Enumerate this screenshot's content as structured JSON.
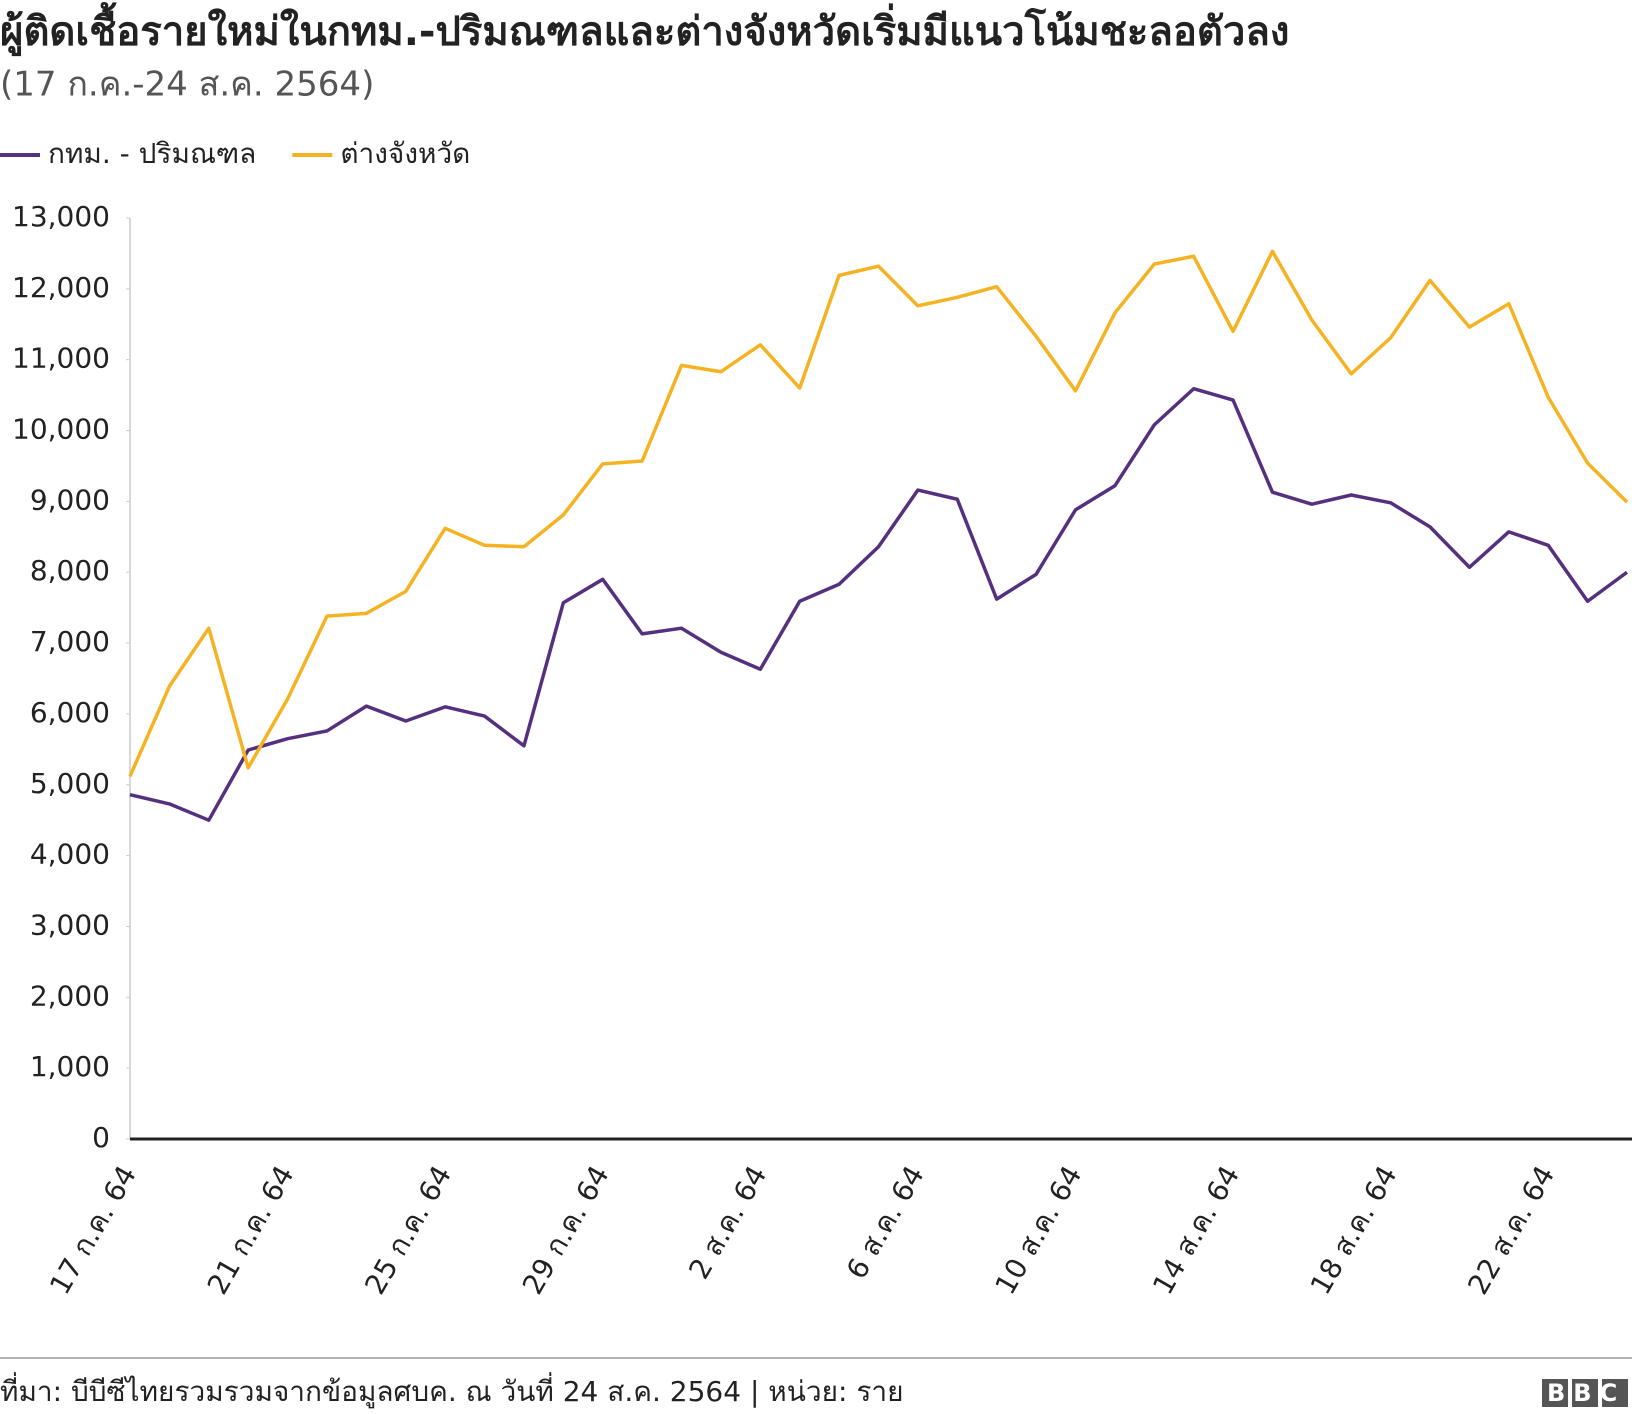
{
  "chart_data": {
    "type": "line",
    "title": "ผู้ติดเชื้อรายใหม่ในกทม.-ปริมณฑลและต่างจังหวัดเริ่มมีแนวโน้มชะลอตัวลง",
    "subtitle": "(17 ก.ค.-24 ส.ค. 2564)",
    "categories": [
      "17 ก.ค. 64",
      null,
      null,
      null,
      "21 ก.ค. 64",
      null,
      null,
      null,
      "25 ก.ค. 64",
      null,
      null,
      null,
      "29 ก.ค. 64",
      null,
      null,
      null,
      "2 ส.ค. 64",
      null,
      null,
      null,
      "6 ส.ค. 64",
      null,
      null,
      null,
      "10 ส.ค. 64",
      null,
      null,
      null,
      "14 ส.ค. 64",
      null,
      null,
      null,
      "18 ส.ค. 64",
      null,
      null,
      null,
      "22 ส.ค. 64",
      null,
      null
    ],
    "series": [
      {
        "name": "กทม. - ปริมณฑล",
        "color": "#55307e",
        "values": [
          4860,
          4730,
          4500,
          5490,
          5650,
          5760,
          6110,
          5900,
          6100,
          5970,
          5550,
          7570,
          7900,
          7130,
          7210,
          6870,
          6630,
          7590,
          7830,
          8360,
          9160,
          9030,
          7620,
          7970,
          8880,
          9220,
          10080,
          10590,
          10430,
          9130,
          8960,
          9090,
          8980,
          8640,
          8070,
          8570,
          8380,
          7590,
          8000
        ]
      },
      {
        "name": "ต่างจังหวัด",
        "color": "#f5b324",
        "values": [
          5120,
          6390,
          7210,
          5240,
          6210,
          7380,
          7420,
          7730,
          8620,
          8380,
          8360,
          8810,
          9530,
          9570,
          10920,
          10830,
          11210,
          10600,
          12190,
          12320,
          11760,
          11880,
          12030,
          11330,
          10560,
          11660,
          12350,
          12460,
          11400,
          12530,
          11560,
          10800,
          11310,
          12120,
          11460,
          11790,
          10470,
          9540,
          8990
        ]
      }
    ],
    "ylim": [
      0,
      13000
    ],
    "yticks": [
      0,
      {
        "value": 1000,
        "label": "1,000"
      },
      {
        "value": 2000,
        "label": "2,000"
      },
      {
        "value": 3000,
        "label": "3,000"
      },
      {
        "value": 4000,
        "label": "4,000"
      },
      {
        "value": 5000,
        "label": "5,000"
      },
      {
        "value": 6000,
        "label": "6,000"
      },
      {
        "value": 7000,
        "label": "7,000"
      },
      {
        "value": 8000,
        "label": "8,000"
      },
      {
        "value": 9000,
        "label": "9,000"
      },
      {
        "value": 10000,
        "label": "10,000"
      },
      {
        "value": 11000,
        "label": "11,000"
      },
      {
        "value": 12000,
        "label": "12,000"
      },
      {
        "value": 13000,
        "label": "13,000"
      }
    ],
    "grid": false,
    "source": "ที่มา: บีบีซีไทยรวมรวมจากข้อมูลศบค. ณ วันที่ 24 ส.ค. 2564 | หน่วย: ราย",
    "logo": "BBC"
  }
}
